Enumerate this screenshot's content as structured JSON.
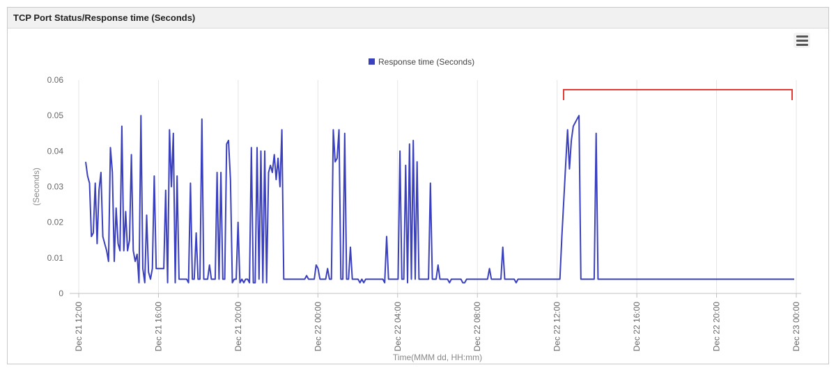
{
  "panel": {
    "title": "TCP Port Status/Response time (Seconds)",
    "menu_icon": "hamburger-menu-icon"
  },
  "colors": {
    "series": "#3a3fbd",
    "grid": "#e4e4e4",
    "highlight": "#e53935"
  },
  "chart_data": {
    "type": "line",
    "title": "",
    "xlabel": "Time(MMM dd, HH:mm)",
    "ylabel": "(Seconds)",
    "ylim": [
      0,
      0.06
    ],
    "y_ticks": [
      "0",
      "0.01",
      "0.02",
      "0.03",
      "0.04",
      "0.05",
      "0.06"
    ],
    "x_ticks": [
      "Dec 21 12:00",
      "Dec 21 16:00",
      "Dec 21 20:00",
      "Dec 22 00:00",
      "Dec 22 04:00",
      "Dec 22 08:00",
      "Dec 22 12:00",
      "Dec 22 16:00",
      "Dec 22 20:00",
      "Dec 23 00:00"
    ],
    "grid": true,
    "legend_position": "top-center",
    "series": [
      {
        "name": "Response time (Seconds)",
        "x_range": [
          "Dec 21 12:30",
          "Dec 22 23:50"
        ],
        "values": [
          0.037,
          0.033,
          0.031,
          0.016,
          0.017,
          0.031,
          0.014,
          0.029,
          0.034,
          0.016,
          0.014,
          0.012,
          0.009,
          0.041,
          0.034,
          0.009,
          0.024,
          0.014,
          0.012,
          0.047,
          0.012,
          0.023,
          0.012,
          0.015,
          0.039,
          0.012,
          0.009,
          0.011,
          0.003,
          0.05,
          0.007,
          0.003,
          0.022,
          0.006,
          0.004,
          0.007,
          0.033,
          0.007,
          0.007,
          0.007,
          0.007,
          0.007,
          0.029,
          0.003,
          0.046,
          0.03,
          0.045,
          0.003,
          0.033,
          0.004,
          0.004,
          0.004,
          0.004,
          0.004,
          0.003,
          0.031,
          0.004,
          0.004,
          0.017,
          0.004,
          0.004,
          0.049,
          0.004,
          0.004,
          0.004,
          0.008,
          0.004,
          0.004,
          0.004,
          0.034,
          0.004,
          0.034,
          0.004,
          0.004,
          0.042,
          0.043,
          0.032,
          0.003,
          0.004,
          0.004,
          0.02,
          0.003,
          0.004,
          0.003,
          0.004,
          0.004,
          0.003,
          0.041,
          0.003,
          0.003,
          0.041,
          0.004,
          0.04,
          0.003,
          0.04,
          0.003,
          0.034,
          0.036,
          0.034,
          0.039,
          0.032,
          0.038,
          0.03,
          0.046,
          0.004,
          0.004,
          0.004,
          0.004,
          0.004,
          0.004,
          0.004,
          0.004,
          0.004,
          0.004,
          0.004,
          0.004,
          0.005,
          0.004,
          0.004,
          0.004,
          0.004,
          0.008,
          0.007,
          0.004,
          0.004,
          0.004,
          0.004,
          0.007,
          0.004,
          0.004,
          0.046,
          0.037,
          0.038,
          0.046,
          0.004,
          0.004,
          0.045,
          0.004,
          0.004,
          0.013,
          0.004,
          0.004,
          0.004,
          0.004,
          0.003,
          0.004,
          0.003,
          0.004,
          0.004,
          0.004,
          0.004,
          0.004,
          0.004,
          0.004,
          0.004,
          0.004,
          0.004,
          0.003,
          0.016,
          0.004,
          0.004,
          0.004,
          0.004,
          0.004,
          0.004,
          0.04,
          0.004,
          0.004,
          0.036,
          0.003,
          0.042,
          0.004,
          0.043,
          0.004,
          0.037,
          0.004,
          0.004,
          0.004,
          0.004,
          0.004,
          0.004,
          0.031,
          0.004,
          0.004,
          0.004,
          0.008,
          0.004,
          0.004,
          0.004,
          0.004,
          0.004,
          0.003,
          0.004,
          0.004,
          0.004,
          0.004,
          0.004,
          0.004,
          0.003,
          0.003,
          0.004,
          0.004,
          0.004,
          0.004,
          0.004,
          0.004,
          0.004,
          0.004,
          0.004,
          0.004,
          0.004,
          0.004,
          0.007,
          0.004,
          0.004,
          0.004,
          0.004,
          0.004,
          0.004,
          0.013,
          0.004,
          0.004,
          0.004,
          0.004,
          0.004,
          0.004,
          0.003,
          0.004,
          0.004,
          0.004,
          0.004,
          0.004,
          0.004,
          0.004,
          0.004,
          0.004,
          0.004,
          0.004,
          0.004,
          0.004,
          0.004,
          0.004,
          0.004,
          0.004,
          0.004,
          0.004,
          0.004,
          0.004,
          0.004,
          0.004,
          0.016,
          0.026,
          0.036,
          0.046,
          0.035,
          0.043,
          0.047,
          0.048,
          0.049,
          0.05,
          0.004,
          0.004,
          0.004,
          0.004,
          0.004,
          0.004,
          0.004,
          0.004,
          0.045,
          0.004,
          0.004,
          0.004,
          0.004,
          0.004,
          0.004,
          0.004,
          0.004,
          0.004,
          0.004,
          0.004,
          0.004,
          0.004,
          0.004,
          0.004,
          0.004,
          0.004,
          0.004,
          0.004,
          0.004,
          0.004,
          0.004,
          0.004,
          0.004,
          0.004,
          0.004,
          0.004,
          0.004,
          0.004,
          0.004,
          0.004,
          0.004,
          0.004,
          0.004,
          0.004,
          0.004,
          0.004,
          0.004,
          0.004,
          0.004,
          0.004,
          0.004,
          0.004,
          0.004,
          0.004,
          0.004,
          0.004,
          0.004,
          0.004,
          0.004,
          0.004,
          0.004,
          0.004,
          0.004,
          0.004,
          0.004,
          0.004,
          0.004,
          0.004,
          0.004,
          0.004,
          0.004,
          0.004,
          0.004,
          0.004,
          0.004,
          0.004,
          0.004,
          0.004,
          0.004,
          0.004,
          0.004,
          0.004,
          0.004,
          0.004,
          0.004,
          0.004,
          0.004,
          0.004,
          0.004,
          0.004,
          0.004,
          0.004,
          0.004,
          0.004,
          0.004,
          0.004,
          0.004,
          0.004,
          0.004,
          0.004,
          0.004,
          0.004,
          0.004,
          0.004,
          0.004,
          0.004,
          0.004,
          0.004,
          0.004,
          0.004,
          0.004,
          0.004,
          0.004
        ]
      }
    ],
    "annotations": [
      {
        "type": "bracket",
        "x_from": "Dec 22 12:00",
        "x_to": "Dec 23 00:00",
        "color": "#e53935"
      }
    ]
  }
}
